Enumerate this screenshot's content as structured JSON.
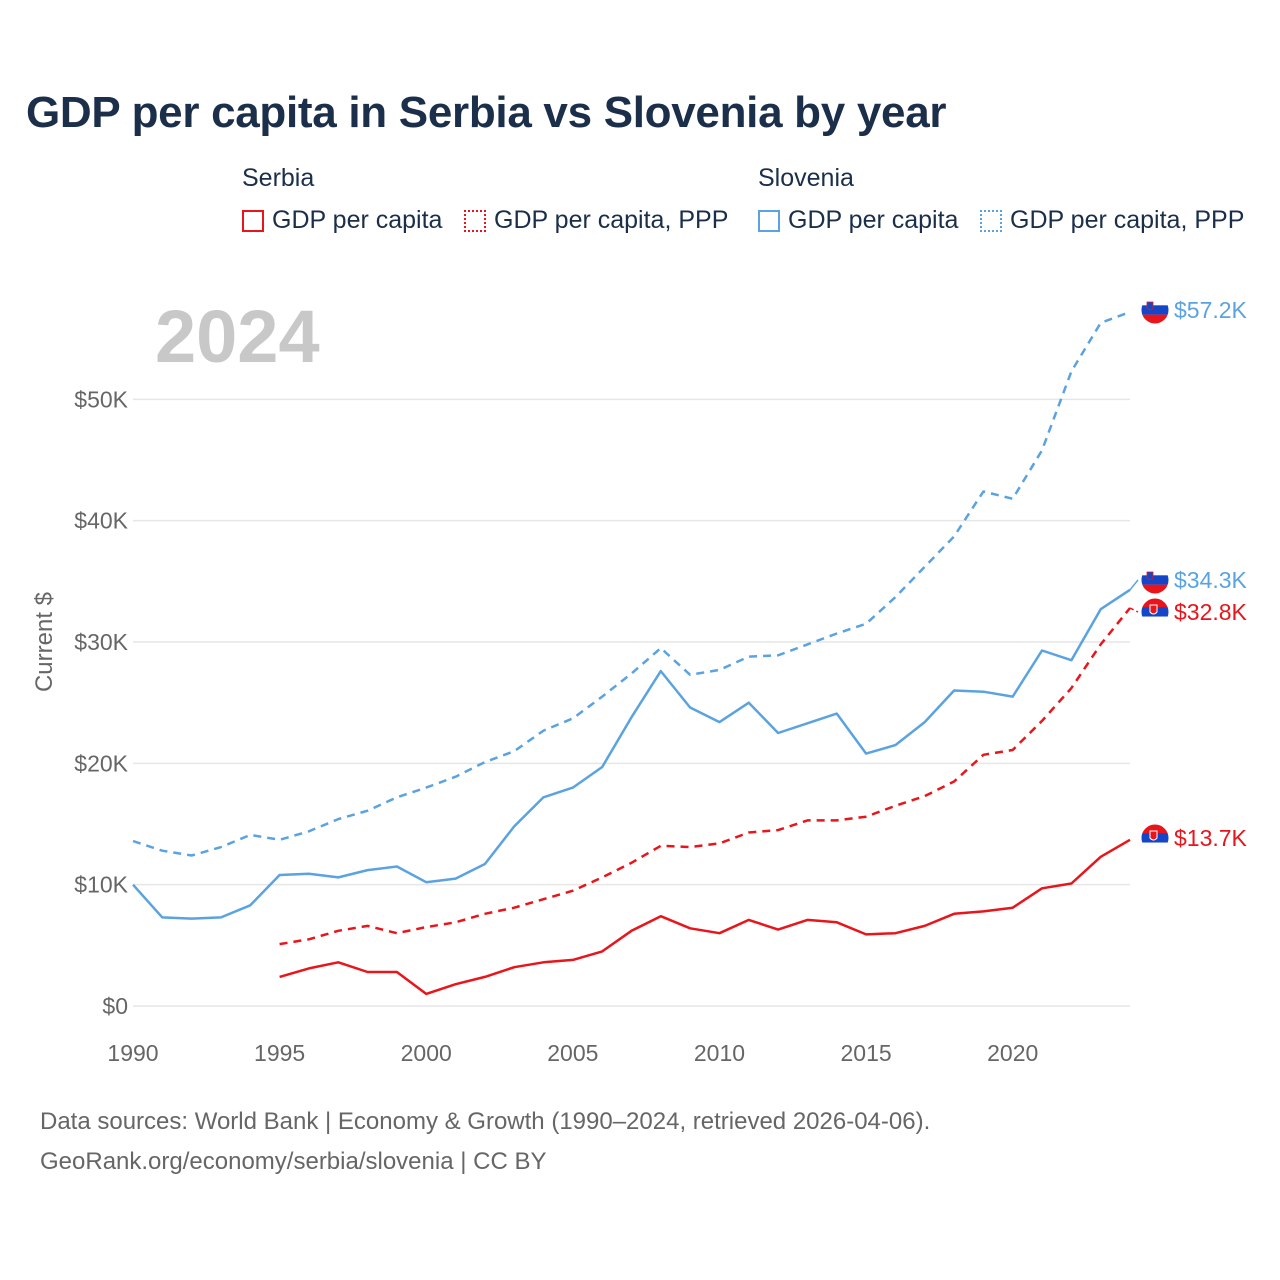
{
  "title": "GDP per capita in Serbia vs Slovenia by year",
  "legend": {
    "groups": [
      {
        "name": "Serbia",
        "color": "#e8151b",
        "items": [
          {
            "label": "GDP per capita",
            "style": "solid"
          },
          {
            "label": "GDP per capita, PPP",
            "style": "dotted"
          }
        ]
      },
      {
        "name": "Slovenia",
        "color": "#5ba3e0",
        "items": [
          {
            "label": "GDP per capita",
            "style": "solid"
          },
          {
            "label": "GDP per capita, PPP",
            "style": "dotted"
          }
        ]
      }
    ]
  },
  "chart_data": {
    "type": "line",
    "year_label": "2024",
    "ylabel": "Current $",
    "xlim": [
      1990,
      2024
    ],
    "ylim": [
      0,
      60000
    ],
    "x_ticks": [
      1990,
      1995,
      2000,
      2005,
      2010,
      2015,
      2020
    ],
    "y_ticks": [
      0,
      10000,
      20000,
      30000,
      40000,
      50000
    ],
    "y_tick_labels": [
      "$0",
      "$10K",
      "$20K",
      "$30K",
      "$40K",
      "$50K"
    ],
    "series": [
      {
        "name": "Slovenia GDP per capita, PPP",
        "country": "Slovenia",
        "color": "#5ba3e0",
        "dashed": true,
        "end_label": "$57.2K",
        "x": [
          1990,
          1991,
          1992,
          1993,
          1994,
          1995,
          1996,
          1997,
          1998,
          1999,
          2000,
          2001,
          2002,
          2003,
          2004,
          2005,
          2006,
          2007,
          2008,
          2009,
          2010,
          2011,
          2012,
          2013,
          2014,
          2015,
          2016,
          2017,
          2018,
          2019,
          2020,
          2021,
          2022,
          2023,
          2024
        ],
        "values": [
          13600,
          12800,
          12400,
          13100,
          14100,
          13700,
          14400,
          15400,
          16100,
          17200,
          18000,
          18900,
          20100,
          21000,
          22700,
          23700,
          25500,
          27400,
          29500,
          27300,
          27700,
          28800,
          28900,
          29800,
          30700,
          31500,
          33700,
          36200,
          38700,
          42400,
          41800,
          45800,
          52300,
          56300,
          57200
        ]
      },
      {
        "name": "Slovenia GDP per capita",
        "country": "Slovenia",
        "color": "#5ba3e0",
        "dashed": false,
        "end_label": "$34.3K",
        "x": [
          1990,
          1991,
          1992,
          1993,
          1994,
          1995,
          1996,
          1997,
          1998,
          1999,
          2000,
          2001,
          2002,
          2003,
          2004,
          2005,
          2006,
          2007,
          2008,
          2009,
          2010,
          2011,
          2012,
          2013,
          2014,
          2015,
          2016,
          2017,
          2018,
          2019,
          2020,
          2021,
          2022,
          2023,
          2024
        ],
        "values": [
          10000,
          7300,
          7200,
          7300,
          8300,
          10800,
          10900,
          10600,
          11200,
          11500,
          10200,
          10500,
          11700,
          14800,
          17200,
          18000,
          19700,
          23800,
          27600,
          24600,
          23400,
          25000,
          22500,
          23300,
          24100,
          20800,
          21500,
          23400,
          26000,
          25900,
          25500,
          29300,
          28500,
          32700,
          34300
        ]
      },
      {
        "name": "Serbia GDP per capita, PPP",
        "country": "Serbia",
        "color": "#e8151b",
        "dashed": true,
        "end_label": "$32.8K",
        "x": [
          1995,
          1996,
          1997,
          1998,
          1999,
          2000,
          2001,
          2002,
          2003,
          2004,
          2005,
          2006,
          2007,
          2008,
          2009,
          2010,
          2011,
          2012,
          2013,
          2014,
          2015,
          2016,
          2017,
          2018,
          2019,
          2020,
          2021,
          2022,
          2023,
          2024
        ],
        "values": [
          5100,
          5500,
          6200,
          6600,
          6000,
          6500,
          6900,
          7600,
          8100,
          8800,
          9500,
          10600,
          11800,
          13200,
          13100,
          13400,
          14300,
          14500,
          15300,
          15300,
          15600,
          16500,
          17300,
          18500,
          20700,
          21100,
          23500,
          26200,
          29800,
          32800
        ]
      },
      {
        "name": "Serbia GDP per capita",
        "country": "Serbia",
        "color": "#e8151b",
        "dashed": false,
        "end_label": "$13.7K",
        "x": [
          1995,
          1996,
          1997,
          1998,
          1999,
          2000,
          2001,
          2002,
          2003,
          2004,
          2005,
          2006,
          2007,
          2008,
          2009,
          2010,
          2011,
          2012,
          2013,
          2014,
          2015,
          2016,
          2017,
          2018,
          2019,
          2020,
          2021,
          2022,
          2023,
          2024
        ],
        "values": [
          2400,
          3100,
          3600,
          2800,
          2800,
          1000,
          1800,
          2400,
          3200,
          3600,
          3800,
          4500,
          6200,
          7400,
          6400,
          6000,
          7100,
          6300,
          7100,
          6900,
          5900,
          6000,
          6600,
          7600,
          7800,
          8100,
          9700,
          10100,
          12300,
          13700
        ]
      }
    ]
  },
  "footer": {
    "line1": "Data sources: World Bank | Economy & Growth (1990–2024, retrieved 2026-04-06).",
    "line2": "GeoRank.org/economy/serbia/slovenia | CC BY"
  }
}
